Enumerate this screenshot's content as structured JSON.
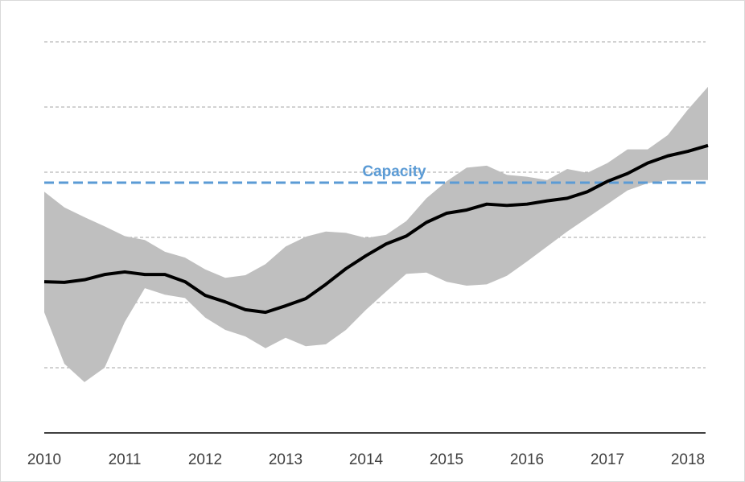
{
  "chart_data": {
    "type": "line",
    "categories": [
      "2010",
      null,
      null,
      null,
      "2011",
      null,
      null,
      null,
      "2012",
      null,
      null,
      null,
      "2013",
      null,
      null,
      null,
      "2014",
      null,
      null,
      null,
      "2015",
      null,
      null,
      null,
      "2016",
      null,
      null,
      null,
      "2017",
      null,
      null,
      null,
      "2018",
      null
    ],
    "values": [
      2.32,
      2.31,
      2.35,
      2.43,
      2.47,
      2.43,
      2.43,
      2.32,
      2.11,
      2.01,
      1.89,
      1.85,
      1.95,
      2.06,
      2.28,
      2.52,
      2.72,
      2.9,
      3.02,
      3.23,
      3.37,
      3.42,
      3.51,
      3.49,
      3.51,
      3.56,
      3.6,
      3.7,
      3.86,
      3.98,
      4.14,
      4.25,
      4.32,
      4.41
    ],
    "color": "#000000",
    "band": {
      "upper": [
        3.7,
        3.46,
        3.31,
        3.17,
        3.02,
        2.96,
        2.78,
        2.69,
        2.51,
        2.38,
        2.42,
        2.59,
        2.86,
        3.01,
        3.09,
        3.07,
        2.99,
        3.04,
        3.25,
        3.6,
        3.86,
        4.07,
        4.1,
        3.96,
        3.93,
        3.88,
        4.05,
        3.99,
        4.14,
        4.35,
        4.35,
        4.57,
        4.96,
        5.31
      ],
      "lower": [
        1.85,
        1.06,
        0.78,
        1.0,
        1.7,
        2.22,
        2.12,
        2.07,
        1.77,
        1.58,
        1.48,
        1.3,
        1.46,
        1.33,
        1.36,
        1.58,
        1.89,
        2.17,
        2.44,
        2.46,
        2.32,
        2.26,
        2.28,
        2.41,
        2.63,
        2.86,
        3.09,
        3.3,
        3.51,
        3.72,
        3.83,
        3.88,
        3.88,
        3.88
      ],
      "color": "#bfbfbf"
    },
    "reference_line": {
      "label": "Capacity",
      "value": 3.84,
      "color": "#5b9bd5"
    },
    "ylim": [
      0,
      6.4
    ],
    "yticks": [
      1,
      2,
      3,
      4,
      5,
      6
    ],
    "grid": true
  }
}
